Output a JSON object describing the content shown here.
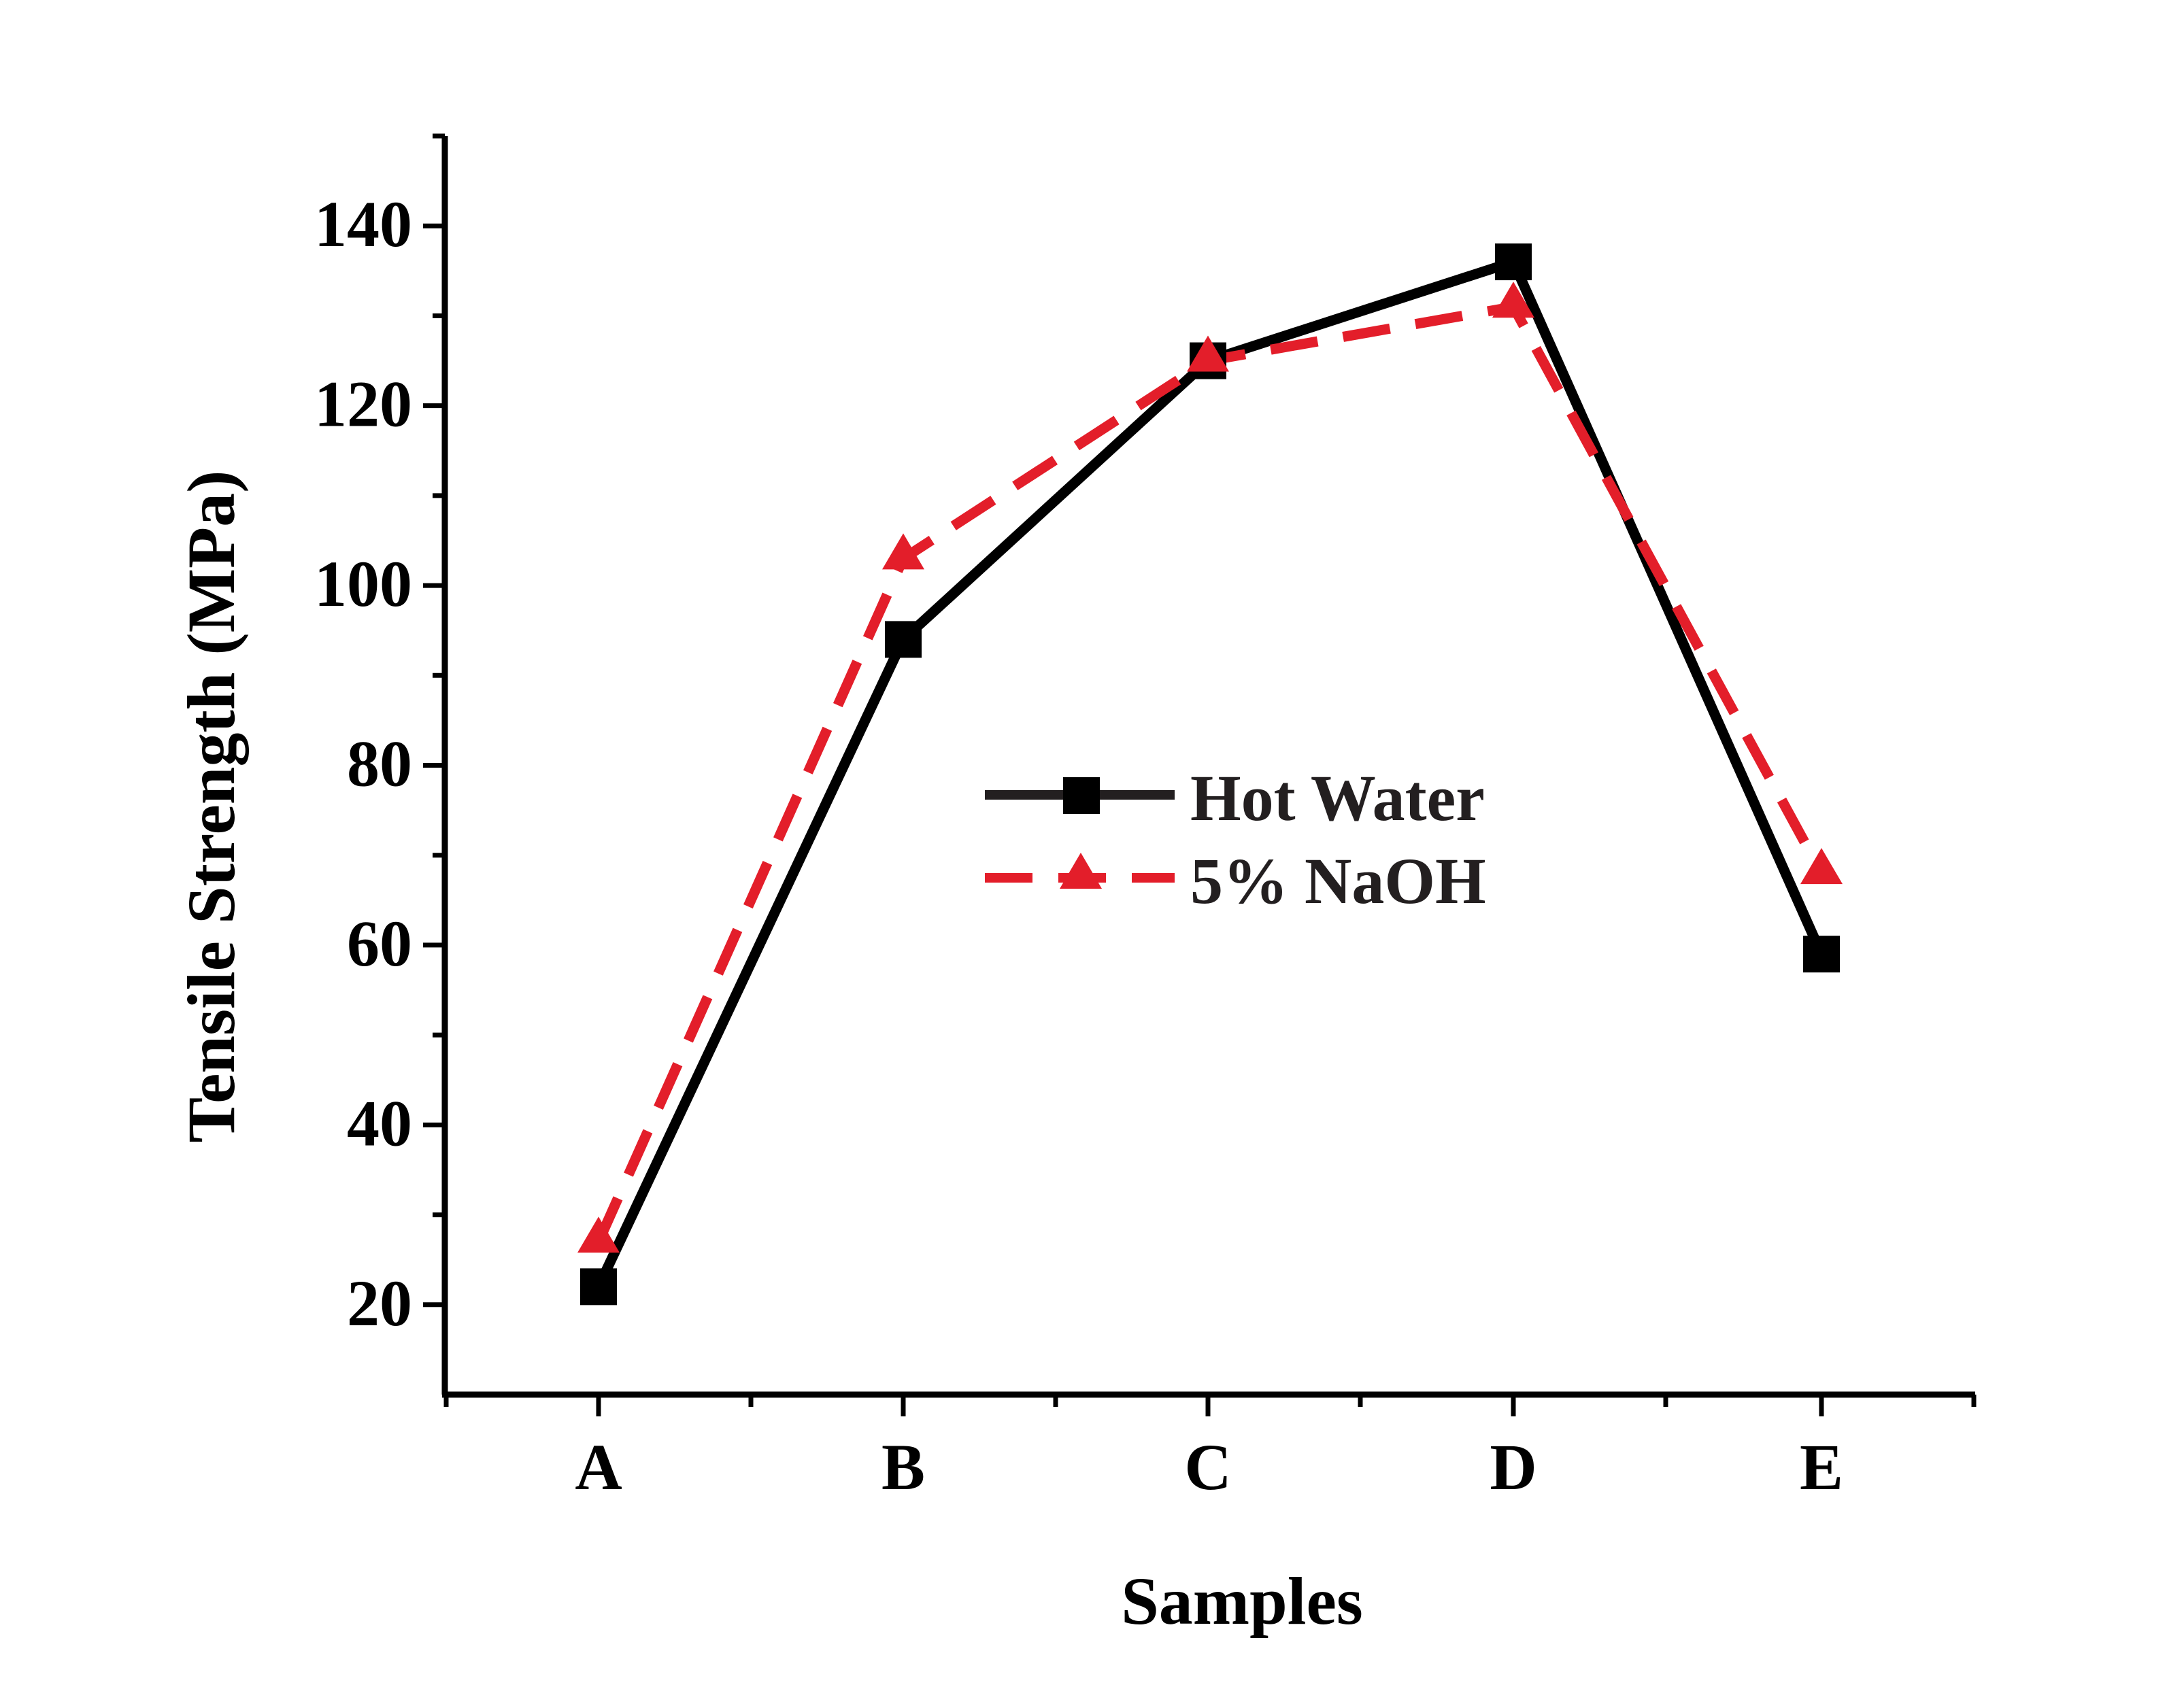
{
  "chart_data": {
    "type": "line",
    "title": "",
    "xlabel": "Samples",
    "ylabel": "Tensile Strength (MPa)",
    "categories": [
      "A",
      "B",
      "C",
      "D",
      "E"
    ],
    "ylim": [
      10,
      150
    ],
    "yticks": [
      20,
      40,
      60,
      80,
      100,
      120,
      140
    ],
    "ytick_labels": [
      "20",
      "40",
      "60",
      "80",
      "100",
      "120",
      "140"
    ],
    "legend_position": "center",
    "series": [
      {
        "name": "Hot Water",
        "values": [
          22,
          94,
          125,
          136,
          59
        ],
        "color": "#000000",
        "line_style": "solid",
        "marker": "square"
      },
      {
        "name": "5% NaOH",
        "values": [
          27,
          103,
          125,
          131,
          68
        ],
        "color": "#e31e2a",
        "line_style": "dashed",
        "marker": "triangle"
      }
    ]
  }
}
